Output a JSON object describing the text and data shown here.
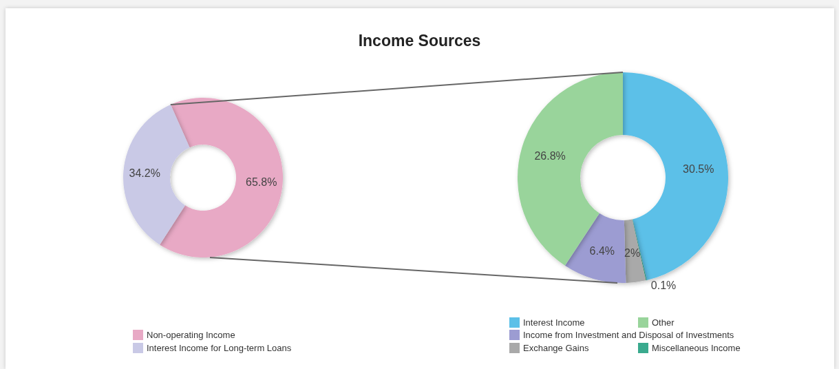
{
  "chart_data": [
    {
      "type": "donut",
      "title": "Income Sources",
      "categories": [
        "Non-operating Income",
        "Interest Income for Long-term Loans"
      ],
      "values": [
        65.8,
        34.2
      ],
      "colors": [
        "#e8a9c5",
        "#c9c9e6"
      ],
      "value_labels": [
        "65.8%",
        "34.2%"
      ],
      "legend": "bottom"
    },
    {
      "type": "donut",
      "categories": [
        "Interest Income",
        "Miscellaneous Income",
        "Exchange Gains",
        "Income from Investment and Disposal of Investments",
        "Other"
      ],
      "values": [
        30.5,
        0.1,
        2,
        6.4,
        26.8
      ],
      "colors": [
        "#5cc0e8",
        "#3aaa8e",
        "#a9a9a9",
        "#9c9cd2",
        "#99d49b"
      ],
      "value_labels": [
        "30.5%",
        "0.1%",
        "2%",
        "6.4%",
        "26.8%"
      ],
      "legend": "bottom"
    }
  ]
}
